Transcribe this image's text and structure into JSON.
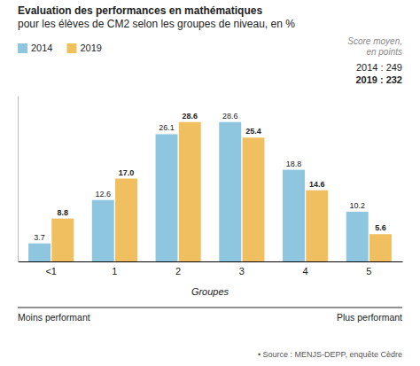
{
  "chart_data": {
    "type": "bar",
    "title": "Evaluation des performances en mathématiques\npour les élèves de CM2 selon les groupes de niveau, en %",
    "categories": [
      "<1",
      "1",
      "2",
      "3",
      "4",
      "5"
    ],
    "series": [
      {
        "name": "2014",
        "color": "#8ec6e0",
        "values": [
          3.7,
          12.6,
          26.1,
          28.6,
          18.8,
          10.2
        ],
        "value_labels": [
          "3.7",
          "12.6",
          "26.1",
          "28.6",
          "18.8",
          "10.2"
        ]
      },
      {
        "name": "2019",
        "color": "#f0c060",
        "values": [
          8.8,
          17.0,
          28.6,
          25.4,
          14.6,
          5.6
        ],
        "value_labels": [
          "8.8",
          "17.0",
          "28.6",
          "25.4",
          "14.6",
          "5.6"
        ]
      }
    ],
    "xlabel": "Groupes",
    "ylim": [
      0,
      34
    ],
    "tick_labels": "x",
    "data_labels": true,
    "grid": false,
    "legend": "upper left",
    "annotations": [
      "Score moyen,\nen points",
      "2014 : 249",
      "2019 : 232",
      "Moins performant",
      "Plus performant",
      "• Source : MENJS-DEPP, enquête Cèdre"
    ]
  }
}
